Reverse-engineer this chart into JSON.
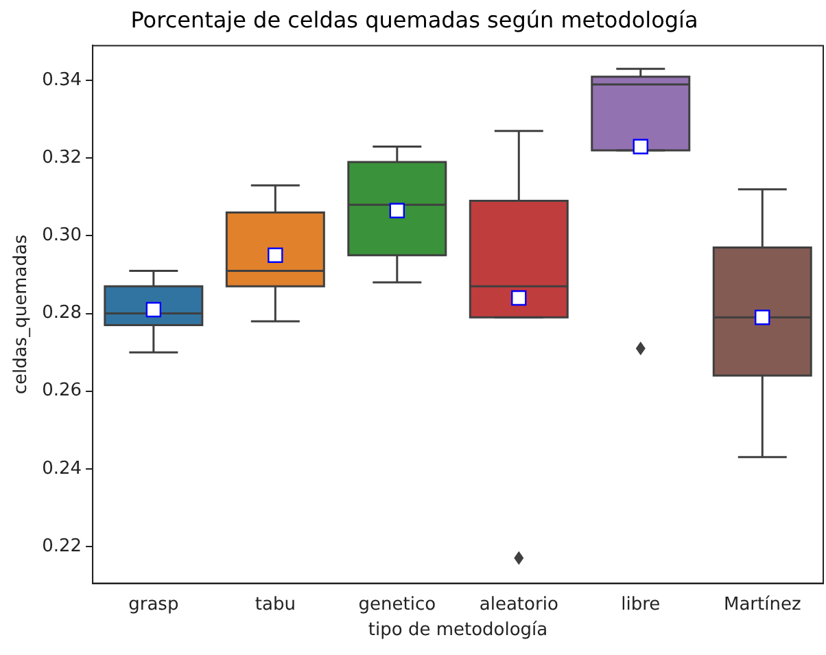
{
  "chart_data": {
    "type": "box",
    "title": "Porcentaje de celdas quemadas según metodología",
    "xlabel": "tipo de metodología",
    "ylabel": "celdas_quemadas",
    "categories": [
      "grasp",
      "tabu",
      "genetico",
      "aleatorio",
      "libre",
      "Martínez"
    ],
    "colors": [
      "#3274a1",
      "#e1812c",
      "#3a923a",
      "#c03d3e",
      "#9372b2",
      "#845b53"
    ],
    "boxes": [
      {
        "low": 0.27,
        "q1": 0.277,
        "median": 0.28,
        "q3": 0.287,
        "high": 0.291,
        "mean": 0.281
      },
      {
        "low": 0.278,
        "q1": 0.287,
        "median": 0.291,
        "q3": 0.306,
        "high": 0.313,
        "mean": 0.295
      },
      {
        "low": 0.288,
        "q1": 0.295,
        "median": 0.308,
        "q3": 0.319,
        "high": 0.323,
        "mean": 0.3065
      },
      {
        "low": 0.279,
        "q1": 0.279,
        "median": 0.287,
        "q3": 0.309,
        "high": 0.327,
        "mean": 0.284,
        "outliers": [
          0.217
        ]
      },
      {
        "low": 0.322,
        "q1": 0.322,
        "median": 0.339,
        "q3": 0.341,
        "high": 0.343,
        "mean": 0.323,
        "outliers": [
          0.271
        ]
      },
      {
        "low": 0.243,
        "q1": 0.264,
        "median": 0.279,
        "q3": 0.297,
        "high": 0.312,
        "mean": 0.279
      }
    ],
    "ylim": [
      0.2105,
      0.349
    ],
    "yticks": [
      {
        "value": 0.22,
        "label": "0.22"
      },
      {
        "value": 0.24,
        "label": "0.24"
      },
      {
        "value": 0.26,
        "label": "0.26"
      },
      {
        "value": 0.28,
        "label": "0.28"
      },
      {
        "value": 0.3,
        "label": "0.30"
      },
      {
        "value": 0.32,
        "label": "0.32"
      },
      {
        "value": 0.34,
        "label": "0.34"
      }
    ],
    "grid": false,
    "legend": false
  }
}
